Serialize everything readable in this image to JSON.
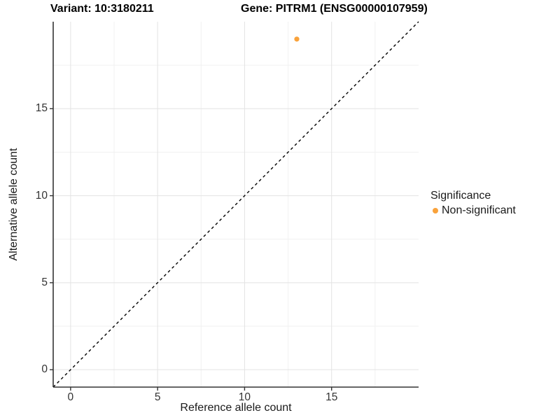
{
  "chart_data": {
    "type": "scatter",
    "titles": {
      "left": "Variant: 10:3180211",
      "right": "Gene: PITRM1 (ENSG00000107959)"
    },
    "xlabel": "Reference allele count",
    "ylabel": "Alternative allele count",
    "x_ticks": [
      0,
      5,
      10,
      15
    ],
    "y_ticks": [
      0,
      5,
      10,
      15
    ],
    "xlim": [
      -1,
      20
    ],
    "ylim": [
      -1,
      20
    ],
    "grid": "major+minor",
    "minor_grid_step": 2.5,
    "points": [
      {
        "x": 13,
        "y": 19,
        "series": "Non-significant"
      }
    ],
    "reference_line": {
      "type": "identity",
      "style": "dashed",
      "from": [
        -1,
        -1
      ],
      "to": [
        20,
        20
      ]
    },
    "legend": {
      "title": "Significance",
      "position": "right",
      "entries": [
        {
          "label": "Non-significant",
          "marker": "circle",
          "color": "#F9A23B"
        }
      ]
    },
    "colors": {
      "point": "#F9A23B",
      "axis_line": "#333333",
      "tick_mark": "#333333",
      "grid_major": "#E3E3E3",
      "grid_minor": "#F1F1F1",
      "reference_line": "#000000",
      "background": "#FFFFFF"
    }
  }
}
